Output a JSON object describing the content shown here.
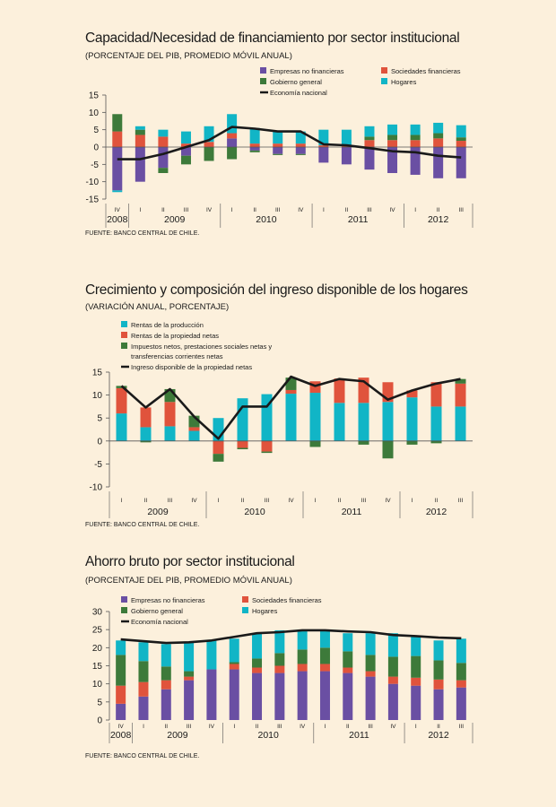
{
  "chart_data": [
    {
      "type": "bar",
      "title": "Capacidad/Necesidad de financiamiento por sector institucional",
      "subtitle": "(PORCENTAJE DEL PIB, PROMEDIO MÓVIL ANUAL)",
      "source": "FUENTE: BANCO CENTRAL DE CHILE.",
      "quarter_labels": [
        "IV",
        "I",
        "II",
        "III",
        "IV",
        "I",
        "II",
        "III",
        "IV",
        "I",
        "II",
        "III",
        "IV",
        "I",
        "II",
        "III"
      ],
      "year_labels": [
        {
          "label": "2008",
          "from": 0,
          "to": 0
        },
        {
          "label": "2009",
          "from": 1,
          "to": 4
        },
        {
          "label": "2010",
          "from": 5,
          "to": 8
        },
        {
          "label": "2011",
          "from": 9,
          "to": 12
        },
        {
          "label": "2012",
          "from": 13,
          "to": 15
        }
      ],
      "ylim": [
        -15,
        15
      ],
      "yticks": [
        15,
        10,
        5,
        0,
        -5,
        -10,
        -15
      ],
      "series": [
        {
          "name": "Empresas no financieras",
          "color": "#6a4fa3",
          "values": [
            -12.5,
            -10,
            -6,
            -2.5,
            0,
            2.5,
            -1,
            -2,
            -2,
            -4.5,
            -5,
            -6.5,
            -7.5,
            -8,
            -9,
            -9
          ]
        },
        {
          "name": "Sociedades financieras",
          "color": "#e0533c",
          "values": [
            4.5,
            3.5,
            3,
            1,
            1.5,
            1.5,
            1,
            1,
            1,
            0.5,
            0.5,
            2,
            2,
            2,
            2.5,
            1.8
          ]
        },
        {
          "name": "Gobierno general",
          "color": "#3d7a3a",
          "values": [
            5,
            1.5,
            -1.5,
            -2.5,
            -4,
            -3.5,
            -0.5,
            -0.3,
            -0.3,
            0,
            0,
            1,
            1.5,
            1.5,
            1.5,
            1
          ]
        },
        {
          "name": "Hogares",
          "color": "#11b5c6",
          "values": [
            -0.5,
            1,
            2,
            3.5,
            4.5,
            5.5,
            4.5,
            3.5,
            3.5,
            4.5,
            4.5,
            3,
            3,
            3,
            3,
            3.5
          ]
        },
        {
          "name": "Economía nacional",
          "type": "line",
          "color": "#1a1a1a",
          "values": [
            -3.5,
            -3.5,
            -2,
            0,
            2,
            5.8,
            5.3,
            4.5,
            4.5,
            0.8,
            0.5,
            -0.3,
            -1.2,
            -1.5,
            -2.5,
            -3
          ]
        }
      ]
    },
    {
      "type": "bar",
      "title": "Crecimiento y composición del ingreso disponible de los hogares",
      "subtitle": "(VARIACIÓN ANUAL, PORCENTAJE)",
      "source": "FUENTE: BANCO CENTRAL DE CHILE.",
      "quarter_labels": [
        "I",
        "II",
        "III",
        "IV",
        "I",
        "II",
        "III",
        "IV",
        "I",
        "II",
        "III",
        "IV",
        "I",
        "II",
        "III"
      ],
      "year_labels": [
        {
          "label": "2009",
          "from": 0,
          "to": 3
        },
        {
          "label": "2010",
          "from": 4,
          "to": 7
        },
        {
          "label": "2011",
          "from": 8,
          "to": 11
        },
        {
          "label": "2012",
          "from": 12,
          "to": 14
        }
      ],
      "ylim": [
        -10,
        15
      ],
      "yticks": [
        15,
        10,
        5,
        0,
        -5,
        -10
      ],
      "series": [
        {
          "name": "Rentas de la producción",
          "color": "#11b5c6",
          "values": [
            6,
            3,
            3.2,
            2.2,
            5,
            9.3,
            10.2,
            10.3,
            10.5,
            8.3,
            8.3,
            8.5,
            9.5,
            7.5,
            7.5
          ]
        },
        {
          "name": "Rentas de la propiedad netas",
          "color": "#e0533c",
          "values": [
            5.5,
            4.3,
            5.3,
            0.8,
            -2.8,
            -1.5,
            -2.3,
            0.8,
            2.5,
            5.3,
            5.5,
            4.3,
            1.5,
            5.3,
            5
          ]
        },
        {
          "name": "Impuestos netos, prestaciones sociales netas y transferencias corrientes netas",
          "color": "#3d7a3a",
          "values": [
            0.5,
            -0.3,
            2.8,
            2.5,
            -1.7,
            -0.3,
            -0.3,
            2.7,
            -1.3,
            0,
            -0.8,
            -3.8,
            -0.8,
            -0.5,
            1
          ]
        },
        {
          "name": "Ingreso disponible de la propiedad netas",
          "type": "line",
          "color": "#1a1a1a",
          "values": [
            12,
            7.3,
            11.3,
            5.3,
            0.5,
            7.5,
            7.5,
            14,
            12,
            13.5,
            13,
            9,
            11,
            12.5,
            13.5
          ]
        }
      ]
    },
    {
      "type": "bar",
      "title": "Ahorro bruto por sector institucional",
      "subtitle": "(PORCENTAJE DEL PIB, PROMEDIO MÓVIL ANUAL)",
      "source": "FUENTE: BANCO CENTRAL DE CHILE.",
      "quarter_labels": [
        "IV",
        "I",
        "II",
        "III",
        "IV",
        "I",
        "II",
        "III",
        "IV",
        "I",
        "II",
        "III",
        "IV",
        "I",
        "II",
        "III"
      ],
      "year_labels": [
        {
          "label": "2008",
          "from": 0,
          "to": 0
        },
        {
          "label": "2009",
          "from": 1,
          "to": 4
        },
        {
          "label": "2010",
          "from": 5,
          "to": 8
        },
        {
          "label": "2011",
          "from": 9,
          "to": 12
        },
        {
          "label": "2012",
          "from": 13,
          "to": 15
        }
      ],
      "ylim": [
        0,
        30
      ],
      "yticks": [
        30,
        25,
        20,
        15,
        10,
        5,
        0
      ],
      "series": [
        {
          "name": "Empresas no financieras",
          "color": "#6a4fa3",
          "values": [
            4.5,
            6.5,
            8.5,
            11,
            14,
            14,
            13,
            13,
            13.5,
            13.5,
            13,
            12,
            10,
            9.5,
            8.5,
            9
          ]
        },
        {
          "name": "Sociedades financieras",
          "color": "#e0533c",
          "values": [
            5,
            4,
            2.5,
            1,
            0,
            1.5,
            1.5,
            2,
            2,
            2,
            1.5,
            1.5,
            2,
            2.2,
            2.7,
            2
          ]
        },
        {
          "name": "Gobierno general",
          "color": "#3d7a3a",
          "values": [
            8.5,
            5.8,
            3.8,
            1.5,
            0,
            0.5,
            2.5,
            3.5,
            4,
            4.5,
            4.5,
            4.5,
            5.5,
            6,
            5.3,
            4.8
          ]
        },
        {
          "name": "Hogares",
          "color": "#11b5c6",
          "values": [
            4,
            5.2,
            6.2,
            8,
            8,
            6.5,
            7,
            6.3,
            5.3,
            5,
            5,
            6,
            6.5,
            5.3,
            5.5,
            6.7
          ]
        },
        {
          "name": "Economía nacional",
          "type": "line",
          "color": "#1a1a1a",
          "values": [
            22.3,
            21.8,
            21.3,
            21.5,
            22,
            23,
            24,
            24.3,
            24.8,
            24.8,
            24.5,
            24.3,
            23.5,
            23.2,
            22.8,
            22.6
          ]
        }
      ]
    }
  ]
}
